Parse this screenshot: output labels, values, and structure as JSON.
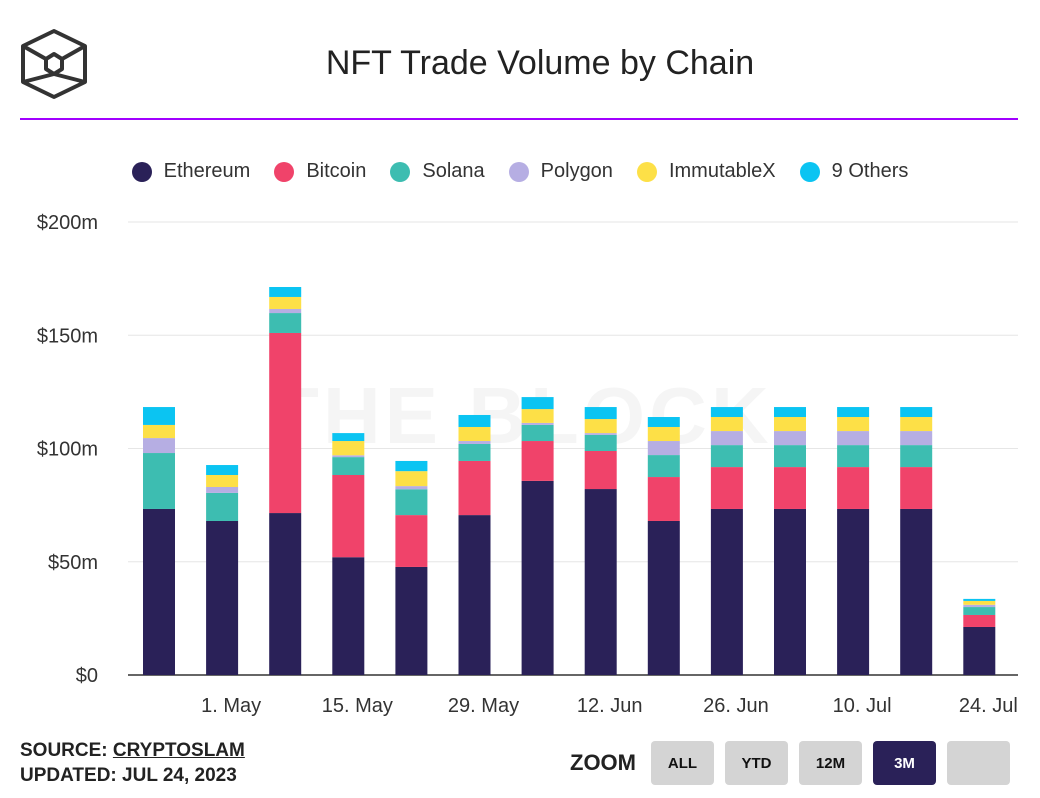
{
  "header": {
    "title": "NFT Trade Volume by Chain",
    "watermark": "THE BLOCK"
  },
  "footer": {
    "source_label": "SOURCE:",
    "source_link": "CRYPTOSLAM",
    "updated": "UPDATED: JUL 24, 2023"
  },
  "zoom": {
    "label": "ZOOM",
    "buttons": [
      "ALL",
      "YTD",
      "12M",
      "3M",
      ""
    ],
    "active": "3M"
  },
  "chart_data": {
    "type": "bar",
    "stacked": true,
    "title": "NFT Trade Volume by Chain",
    "ylim": [
      0,
      200
    ],
    "yticks": [
      {
        "v": 0,
        "label": "$0"
      },
      {
        "v": 50,
        "label": "$50m"
      },
      {
        "v": 100,
        "label": "$100m"
      },
      {
        "v": 150,
        "label": "$150m"
      },
      {
        "v": 200,
        "label": "$200m"
      }
    ],
    "xticks": [
      {
        "day": 8,
        "label": "1. May"
      },
      {
        "day": 22,
        "label": "15. May"
      },
      {
        "day": 36,
        "label": "29. May"
      },
      {
        "day": 50,
        "label": "12. Jun"
      },
      {
        "day": 64,
        "label": "26. Jun"
      },
      {
        "day": 78,
        "label": "10. Jul"
      },
      {
        "day": 92,
        "label": "24. Jul"
      }
    ],
    "categories": [
      "2023-04-23",
      "2023-04-30",
      "2023-05-07",
      "2023-05-14",
      "2023-05-21",
      "2023-05-28",
      "2023-06-04",
      "2023-06-11",
      "2023-06-18",
      "2023-06-25",
      "2023-07-02",
      "2023-07-09",
      "2023-07-16",
      "2023-07-23"
    ],
    "category_days": [
      0,
      7,
      14,
      21,
      28,
      35,
      42,
      49,
      56,
      63,
      70,
      77,
      84,
      91
    ],
    "legend_position": "top-center",
    "grid": true,
    "series": [
      {
        "name": "Ethereum",
        "color": "#2a2158",
        "values": [
          73.3,
          68,
          71.5,
          52,
          47.7,
          70.6,
          85.7,
          82.1,
          68,
          73.3,
          73.3,
          73.3,
          73.3,
          21.2
        ]
      },
      {
        "name": "Bitcoin",
        "color": "#f0436a",
        "values": [
          0,
          0,
          79.5,
          36.3,
          22.9,
          23.9,
          17.6,
          16.8,
          19.4,
          18.5,
          18.5,
          18.5,
          18.5,
          5.3
        ]
      },
      {
        "name": "Solana",
        "color": "#3dbdb1",
        "values": [
          24.7,
          12.4,
          8.8,
          7.9,
          11.4,
          7.5,
          7.1,
          7.1,
          9.7,
          9.7,
          9.7,
          9.7,
          9.7,
          3.5
        ]
      },
      {
        "name": "Polygon",
        "color": "#b6aee3",
        "values": [
          6.6,
          2.6,
          1.8,
          0.8,
          1.4,
          1.3,
          0.9,
          0.8,
          6.2,
          6.2,
          6.2,
          6.2,
          6.2,
          1
        ]
      },
      {
        "name": "ImmutableX",
        "color": "#fde047",
        "values": [
          5.8,
          5.3,
          5.3,
          6.3,
          6.6,
          6.2,
          6.1,
          6.2,
          6.2,
          6.2,
          6.2,
          6.2,
          6.2,
          1.7
        ]
      },
      {
        "name": "9 Others",
        "color": "#0bc4f2",
        "values": [
          7.9,
          4.4,
          4.4,
          3.5,
          4.5,
          5.3,
          5.3,
          5.3,
          4.4,
          4.4,
          4.4,
          4.4,
          4.4,
          0.9
        ]
      }
    ]
  }
}
